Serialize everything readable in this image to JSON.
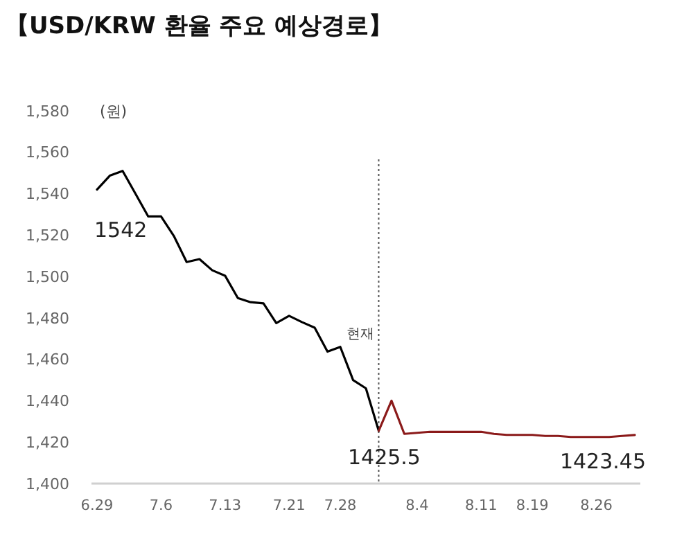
{
  "chart_data": {
    "type": "line",
    "title": "【USD/KRW 환율 주요 예상경로】",
    "ylabel": "(원)",
    "categories": [
      "6.29",
      null,
      null,
      null,
      null,
      "7.6",
      null,
      null,
      null,
      null,
      "7.13",
      null,
      null,
      null,
      null,
      "7.21",
      null,
      null,
      null,
      "7.28",
      null,
      null,
      null,
      null,
      null,
      "8.4",
      null,
      null,
      null,
      null,
      "8.11",
      null,
      null,
      null,
      "8.19",
      null,
      null,
      null,
      null,
      "8.26",
      null,
      null,
      null
    ],
    "series": [
      {
        "color": "#000000",
        "values": [
          1542,
          1548.7,
          1551,
          1540,
          1529,
          1529,
          1519.6,
          1507,
          1508.4,
          1503,
          1500.4,
          1489.6,
          1487.6,
          1487,
          1477.5,
          1481,
          1478,
          1475.3,
          1463.7,
          1466,
          1450,
          1446,
          1425.5,
          null,
          null,
          null,
          null,
          null,
          null,
          null,
          null,
          null,
          null,
          null,
          null,
          null,
          null,
          null,
          null,
          null,
          null,
          null,
          null
        ],
        "value_labels": [
          "1542",
          null,
          null,
          null,
          null,
          null,
          null,
          null,
          null,
          null,
          null,
          null,
          null,
          null,
          null,
          null,
          null,
          null,
          null,
          null,
          null,
          null,
          "1425.5",
          null,
          null,
          null,
          null,
          null,
          null,
          null,
          null,
          null,
          null,
          null,
          null,
          null,
          null,
          null,
          null,
          null,
          null,
          null,
          null
        ]
      },
      {
        "color": "#8b1a1a",
        "values": [
          null,
          null,
          null,
          null,
          null,
          null,
          null,
          null,
          null,
          null,
          null,
          null,
          null,
          null,
          null,
          null,
          null,
          null,
          null,
          null,
          null,
          null,
          1425.5,
          1440,
          1424,
          1424.5,
          1425,
          1425,
          1425,
          1425,
          1425,
          1424,
          1423.5,
          1423.5,
          1423.5,
          1423,
          1423,
          1422.5,
          1422.5,
          1422.5,
          1422.5,
          1423,
          1423.45
        ],
        "value_labels": [
          null,
          null,
          null,
          null,
          null,
          null,
          null,
          null,
          null,
          null,
          null,
          null,
          null,
          null,
          null,
          null,
          null,
          null,
          null,
          null,
          null,
          null,
          null,
          null,
          null,
          null,
          null,
          null,
          null,
          null,
          null,
          null,
          null,
          null,
          null,
          null,
          null,
          null,
          null,
          null,
          null,
          null,
          "1423.45"
        ]
      }
    ],
    "ylim": [
      1400,
      1580
    ],
    "yticks": [
      {
        "value": 1400,
        "label": "1,400"
      },
      {
        "value": 1420,
        "label": "1,420"
      },
      {
        "value": 1440,
        "label": "1,440"
      },
      {
        "value": 1460,
        "label": "1,460"
      },
      {
        "value": 1480,
        "label": "1,480"
      },
      {
        "value": 1500,
        "label": "1,500"
      },
      {
        "value": 1520,
        "label": "1,520"
      },
      {
        "value": 1540,
        "label": "1,540"
      },
      {
        "value": 1560,
        "label": "1,560"
      },
      {
        "value": 1580,
        "label": "1,580"
      }
    ],
    "annotations": [
      "현재"
    ],
    "marker": "none",
    "line_style": "solid"
  }
}
